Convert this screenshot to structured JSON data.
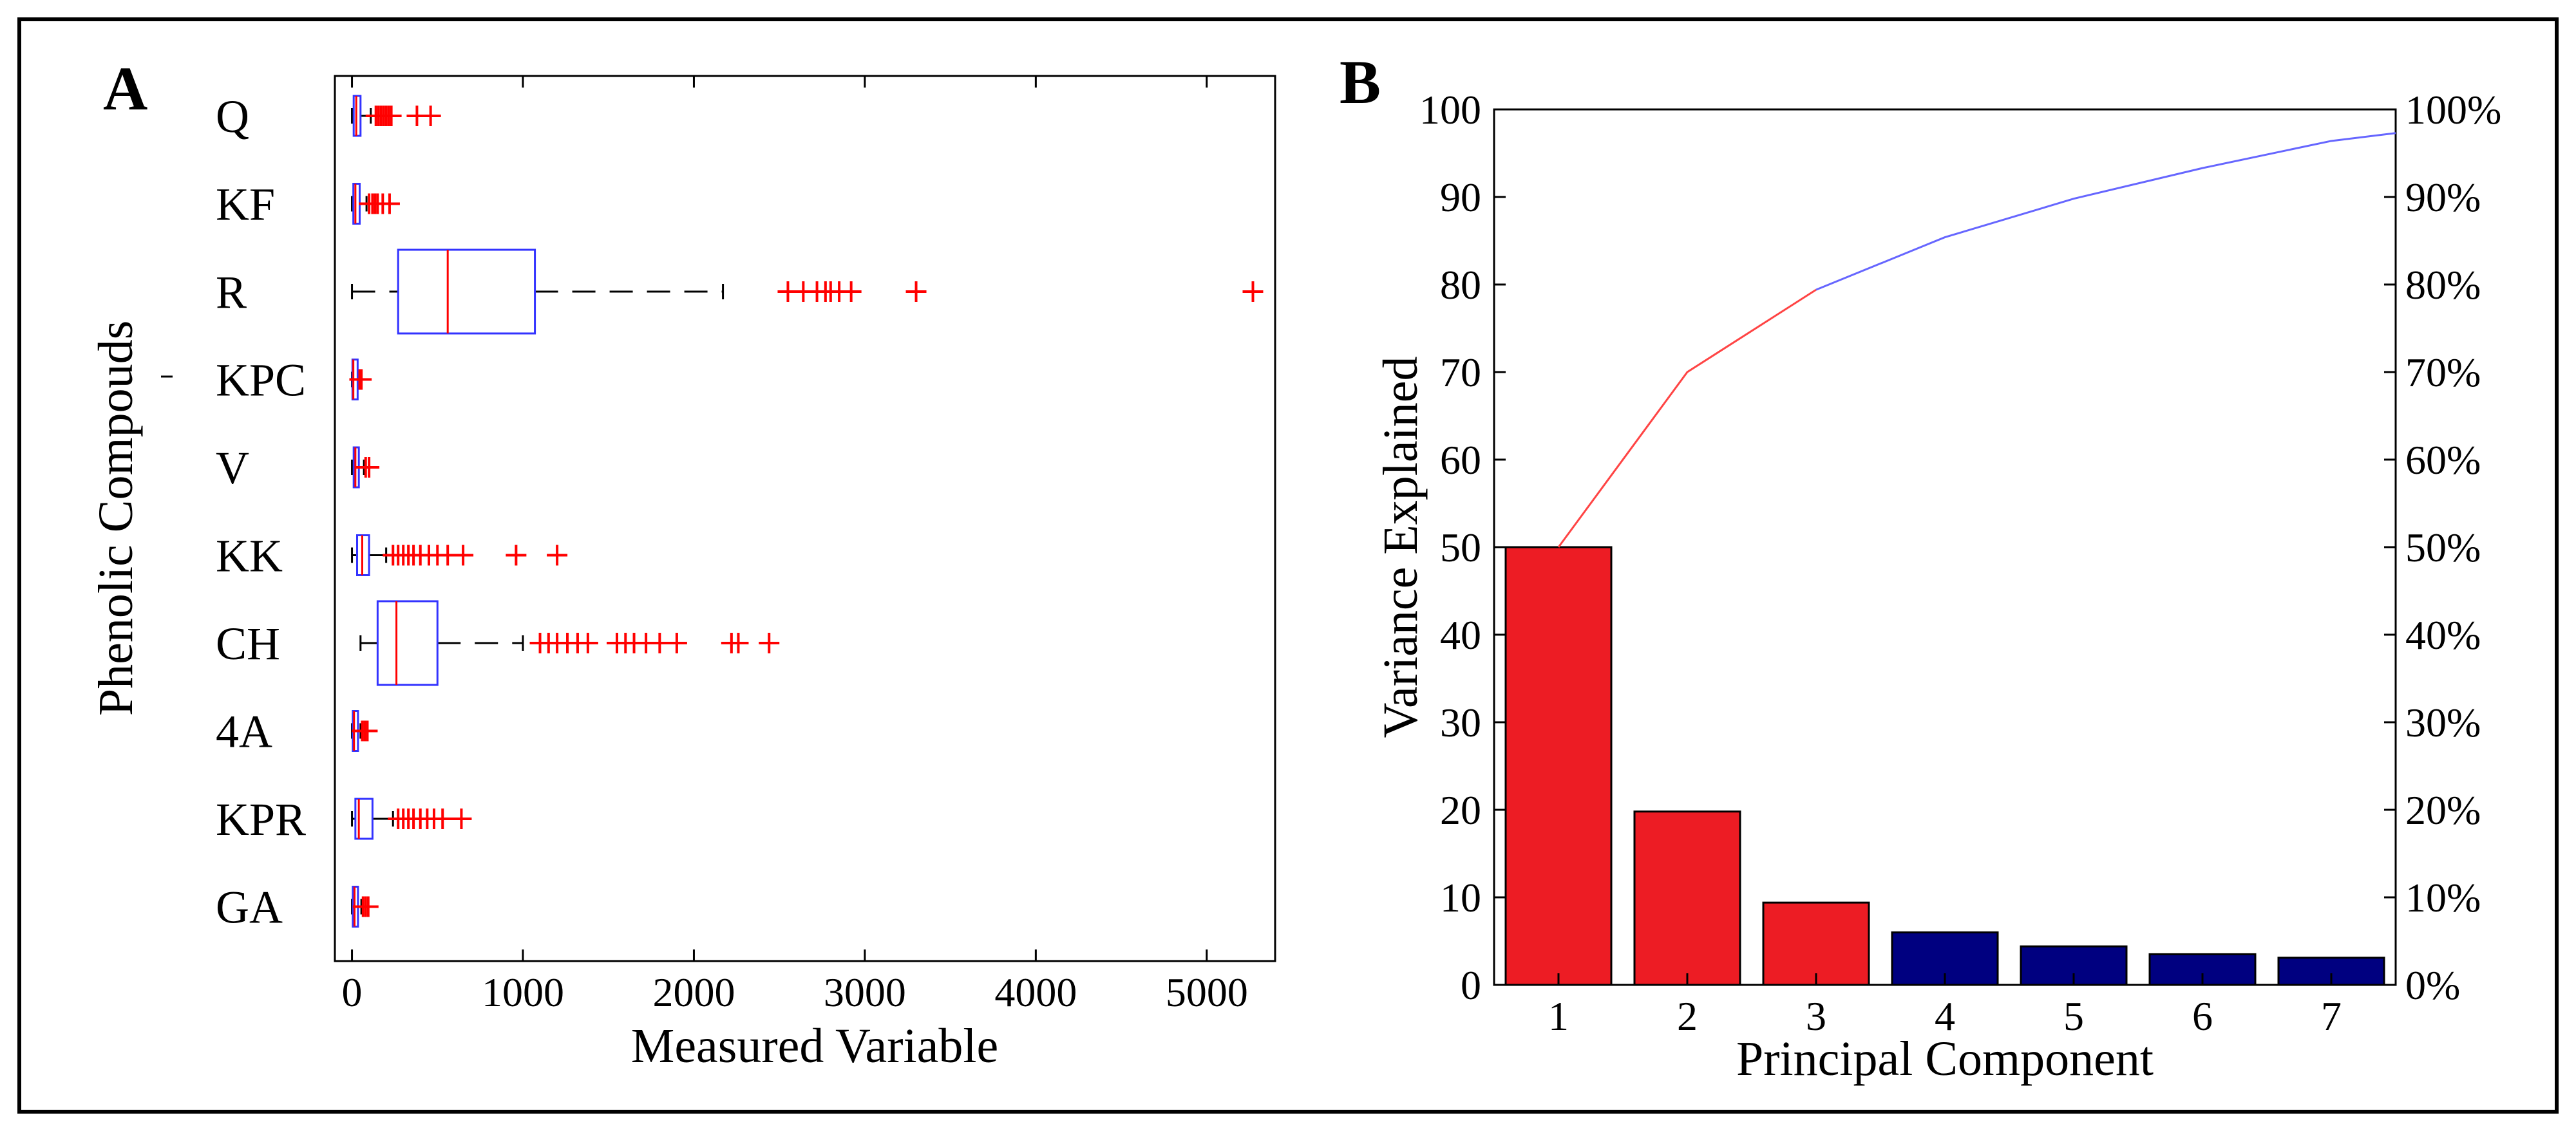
{
  "chart_data": [
    {
      "panel": "A",
      "type": "boxplot",
      "orientation": "horizontal",
      "xlabel": "Measured Variable",
      "ylabel": "Phenolic Compouds",
      "xlim": [
        -100,
        5400
      ],
      "xticks": [
        0,
        1000,
        2000,
        3000,
        4000,
        5000
      ],
      "categories": [
        "Q",
        "KF",
        "R",
        "KPC",
        "V",
        "KK",
        "CH",
        "4A",
        "KPR",
        "GA"
      ],
      "series": [
        {
          "name": "Q",
          "min": 0,
          "q1": 10,
          "median": 25,
          "q3": 50,
          "max": 110,
          "outliers": [
            140,
            155,
            170,
            185,
            200,
            215,
            230,
            380,
            460
          ]
        },
        {
          "name": "KF",
          "min": 0,
          "q1": 8,
          "median": 20,
          "q3": 45,
          "max": 85,
          "outliers": [
            100,
            120,
            135,
            150,
            180,
            220
          ]
        },
        {
          "name": "R",
          "min": 0,
          "q1": 270,
          "median": 560,
          "q3": 1070,
          "max": 2170,
          "outliers": [
            2550,
            2640,
            2720,
            2770,
            2800,
            2850,
            2920,
            3300,
            5270
          ]
        },
        {
          "name": "KPC",
          "min": 0,
          "q1": 3,
          "median": 8,
          "q3": 15,
          "max": 35,
          "outliers": [
            45,
            55
          ]
        },
        {
          "name": "V",
          "min": 0,
          "q1": 10,
          "median": 20,
          "q3": 40,
          "max": 70,
          "outliers": [
            80,
            100
          ]
        },
        {
          "name": "KK",
          "min": 0,
          "q1": 30,
          "median": 60,
          "q3": 100,
          "max": 200,
          "outliers": [
            240,
            270,
            300,
            330,
            360,
            400,
            450,
            500,
            560,
            650,
            960,
            1200
          ]
        },
        {
          "name": "CH",
          "min": 50,
          "q1": 150,
          "median": 260,
          "q3": 500,
          "max": 1000,
          "outliers": [
            1100,
            1150,
            1200,
            1260,
            1320,
            1380,
            1550,
            1600,
            1650,
            1720,
            1800,
            1900,
            2220,
            2260,
            2440
          ]
        },
        {
          "name": "4A",
          "min": 0,
          "q1": 5,
          "median": 12,
          "q3": 25,
          "max": 50,
          "outliers": [
            60,
            75,
            90
          ]
        },
        {
          "name": "KPR",
          "min": 0,
          "q1": 20,
          "median": 40,
          "q3": 120,
          "max": 240,
          "outliers": [
            270,
            300,
            330,
            360,
            400,
            440,
            480,
            530,
            640
          ]
        },
        {
          "name": "GA",
          "min": 0,
          "q1": 5,
          "median": 15,
          "q3": 30,
          "max": 55,
          "outliers": [
            65,
            80,
            95
          ]
        }
      ],
      "colors": {
        "box": "#3333ff",
        "median": "#ff0000",
        "outlier": "#ff0000",
        "whisker": "#000000"
      }
    },
    {
      "panel": "B",
      "type": "bar",
      "title": "",
      "xlabel": "Principal Component",
      "ylabel": "Variance Explained",
      "categories": [
        "1",
        "2",
        "3",
        "4",
        "5",
        "6",
        "7"
      ],
      "values": [
        50,
        19.8,
        9.4,
        6.0,
        4.4,
        3.5,
        3.1
      ],
      "bar_colors": [
        "#ed1c24",
        "#ed1c24",
        "#ed1c24",
        "#000080",
        "#000080",
        "#000080",
        "#000080"
      ],
      "ylim": [
        0,
        100
      ],
      "yticks": [
        0,
        10,
        20,
        30,
        40,
        50,
        60,
        70,
        80,
        90,
        100
      ],
      "y2ticks": [
        "0%",
        "10%",
        "20%",
        "30%",
        "40%",
        "50%",
        "60%",
        "70%",
        "80%",
        "90%",
        "100%"
      ],
      "cumulative": [
        50,
        70,
        79.4,
        85.4,
        89.8,
        93.3,
        96.4,
        97.3
      ],
      "cumulative_x": [
        1,
        2,
        3,
        4,
        5,
        6,
        7,
        7.5
      ],
      "cumulative_colors": {
        "first_part": "#ff4444",
        "second_part": "#6666ff"
      }
    }
  ],
  "labels": {
    "panel_a": "A",
    "panel_b": "B"
  }
}
